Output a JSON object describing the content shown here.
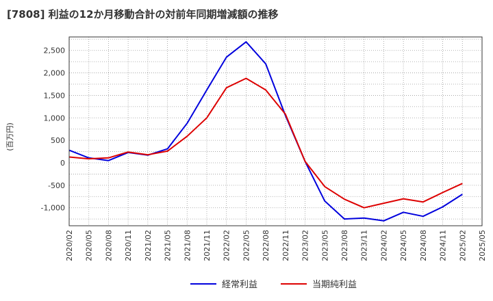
{
  "chart_data": {
    "type": "line",
    "title": "[7808]  利益の12か月移動合計の対前年同期増減額の推移",
    "ylabel": "(百万円)",
    "xlabel": "",
    "ylim": [
      -1400,
      2800
    ],
    "yticks": [
      -1000,
      -500,
      0,
      500,
      1000,
      1500,
      2000,
      2500
    ],
    "ytick_labels": [
      "-1,000",
      "-500",
      "0",
      "500",
      "1,000",
      "1,500",
      "2,000",
      "2,500"
    ],
    "categories": [
      "2020/02",
      "2020/05",
      "2020/08",
      "2020/11",
      "2021/02",
      "2021/05",
      "2021/08",
      "2021/11",
      "2022/02",
      "2022/05",
      "2022/08",
      "2022/11",
      "2023/02",
      "2023/05",
      "2023/08",
      "2023/11",
      "2024/02",
      "2024/05",
      "2024/08",
      "2024/11",
      "2025/02",
      "2025/05"
    ],
    "grid": true,
    "legend_position": "bottom",
    "series": [
      {
        "name": "経常利益",
        "color": "#0000dd",
        "values": [
          280,
          110,
          50,
          230,
          170,
          310,
          880,
          1620,
          2350,
          2690,
          2200,
          1050,
          30,
          -850,
          -1250,
          -1230,
          -1290,
          -1100,
          -1190,
          -980,
          -700,
          null
        ]
      },
      {
        "name": "当期純利益",
        "color": "#dd0000",
        "values": [
          130,
          90,
          110,
          240,
          180,
          260,
          590,
          1000,
          1670,
          1880,
          1620,
          1080,
          30,
          -530,
          -810,
          -1000,
          -900,
          -800,
          -870,
          -660,
          -460,
          null
        ]
      }
    ]
  }
}
